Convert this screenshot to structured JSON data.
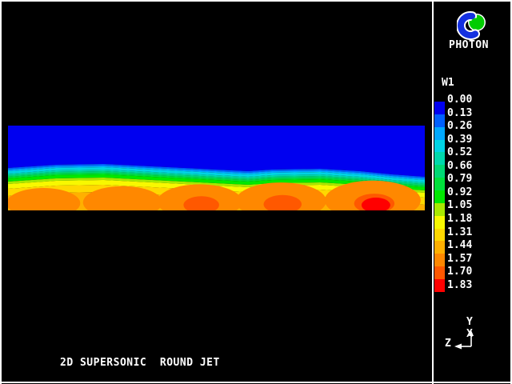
{
  "main": {
    "caption": "2D SUPERSONIC  ROUND JET"
  },
  "sidebar": {
    "brand": "PHOTON",
    "legend": {
      "variable": "W1",
      "entries": [
        {
          "value": "0.00",
          "color": "#0000f0"
        },
        {
          "value": "0.13",
          "color": "#0060ff"
        },
        {
          "value": "0.26",
          "color": "#00a8ff"
        },
        {
          "value": "0.39",
          "color": "#00d4e4"
        },
        {
          "value": "0.52",
          "color": "#00d8ac"
        },
        {
          "value": "0.66",
          "color": "#00d874"
        },
        {
          "value": "0.79",
          "color": "#00e03c"
        },
        {
          "value": "0.92",
          "color": "#00e800"
        },
        {
          "value": "1.05",
          "color": "#a8e800"
        },
        {
          "value": "1.18",
          "color": "#f8f800"
        },
        {
          "value": "1.31",
          "color": "#ffd800"
        },
        {
          "value": "1.44",
          "color": "#ffb000"
        },
        {
          "value": "1.57",
          "color": "#ff8800"
        },
        {
          "value": "1.70",
          "color": "#ff5800"
        },
        {
          "value": "1.83",
          "color": "#ff0000"
        }
      ]
    },
    "axis_triad": {
      "y": "Y",
      "x": "X",
      "z": "Z"
    },
    "logo_colors": {
      "blue": "#1430e0",
      "green": "#00cc00",
      "outline": "#ffffff"
    }
  },
  "chart_data": {
    "type": "heatmap",
    "title": "2D SUPERSONIC  ROUND JET",
    "variable": "W1",
    "levels": [
      0.0,
      0.13,
      0.26,
      0.39,
      0.52,
      0.66,
      0.79,
      0.92,
      1.05,
      1.18,
      1.31,
      1.44,
      1.57,
      1.7,
      1.83
    ],
    "palette": [
      "#0000f0",
      "#0060ff",
      "#00a8ff",
      "#00d4e4",
      "#00d8ac",
      "#00d874",
      "#00e03c",
      "#00e800",
      "#a8e800",
      "#f8f800",
      "#ffd800",
      "#ffb000",
      "#ff8800",
      "#ff5800",
      "#ff0000"
    ],
    "legend_position": "right",
    "field_description": "Contour map of axial velocity W1: quiescent blue region (W1 near 0.00) above, thin cyan-green-yellow shear-layer bands, and a supersonic jet along the lower boundary containing five periodic shock cells whose peak W1 intensifies downstream to about 1.83 (red) in the rightmost cell.",
    "shock_cells": [
      {
        "x_fraction": 0.085,
        "peak_level": 1.57
      },
      {
        "x_fraction": 0.275,
        "peak_level": 1.57
      },
      {
        "x_fraction": 0.46,
        "peak_level": 1.7
      },
      {
        "x_fraction": 0.655,
        "peak_level": 1.7
      },
      {
        "x_fraction": 0.875,
        "peak_level": 1.83
      }
    ],
    "interstice_color": "#fff870"
  }
}
